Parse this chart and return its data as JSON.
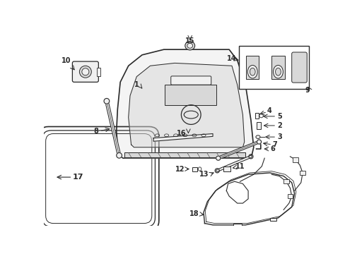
{
  "background_color": "#ffffff",
  "fig_width": 4.89,
  "fig_height": 3.6,
  "dpi": 100,
  "line_color": "#2a2a2a",
  "line_color2": "#555555",
  "fill_light": "#f0f0f0",
  "fill_mid": "#d8d8d8",
  "fill_dark": "#b8b8b8"
}
